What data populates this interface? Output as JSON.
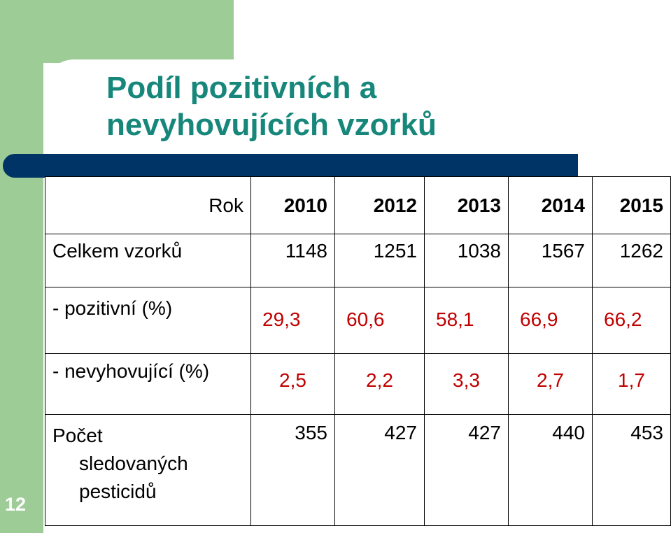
{
  "slide": {
    "title_line1": "Podíl pozitivních a",
    "title_line2": "nevyhovujících vzorků",
    "number": "12"
  },
  "colors": {
    "accent_green": "#9dcc96",
    "title_teal": "#16877a",
    "bar_navy": "#003366",
    "highlight_red": "#c00000"
  },
  "table": {
    "year_label": "Rok",
    "years": [
      "2010",
      "2012",
      "2013",
      "2014",
      "2015"
    ],
    "rows": {
      "total": {
        "label": "Celkem vzorků",
        "values": [
          "1148",
          "1251",
          "1038",
          "1567",
          "1262"
        ]
      },
      "positive": {
        "label": "- pozitivní (%)",
        "values": [
          "29,3",
          "60,6",
          "58,1",
          "66,9",
          "66,2"
        ]
      },
      "noncompliant": {
        "label": "- nevyhovující (%)",
        "values": [
          "2,5",
          "2,2",
          "3,3",
          "2,7",
          "1,7"
        ]
      },
      "pesticides": {
        "label_lines": [
          "Počet",
          "sledovaných",
          "pesticidů"
        ],
        "values": [
          "355",
          "427",
          "427",
          "440",
          "453"
        ]
      }
    }
  }
}
